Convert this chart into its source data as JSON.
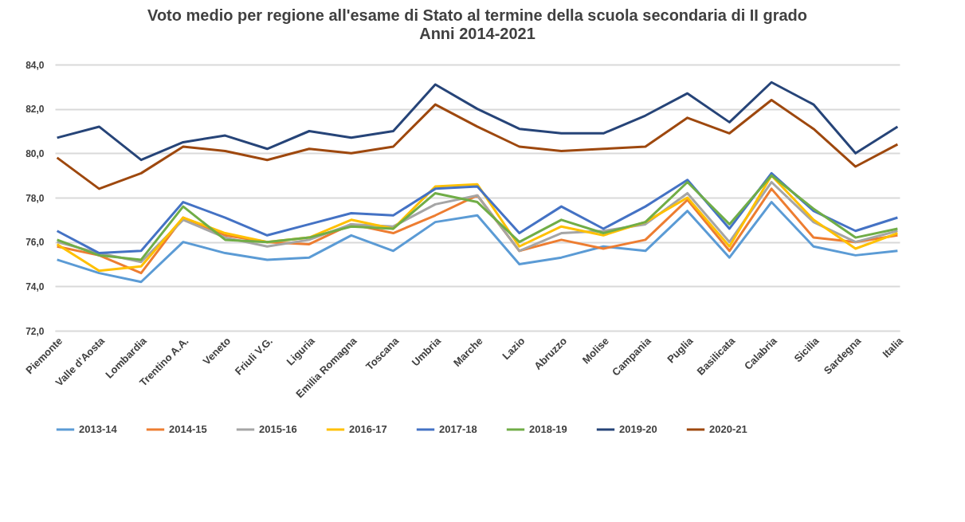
{
  "chart_data": {
    "type": "line",
    "title": "Voto medio per regione all'esame di Stato al termine della scuola secondaria di II grado",
    "subtitle": "Anni 2014-2021",
    "categories": [
      "Piemonte",
      "Valle d'Aosta",
      "Lombardia",
      "Trentino A.A.",
      "Veneto",
      "Friuli V.G.",
      "Liguria",
      "Emilia Romagna",
      "Toscana",
      "Umbria",
      "Marche",
      "Lazio",
      "Abruzzo",
      "Molise",
      "Campania",
      "Puglia",
      "Basilicata",
      "Calabria",
      "Sicilia",
      "Sardegna",
      "Italia"
    ],
    "ylim": [
      72,
      84
    ],
    "yticks": [
      {
        "value": 72,
        "label": "72,0"
      },
      {
        "value": 74,
        "label": "74,0"
      },
      {
        "value": 76,
        "label": "76,0"
      },
      {
        "value": 78,
        "label": "78,0"
      },
      {
        "value": 80,
        "label": "80,0"
      },
      {
        "value": 82,
        "label": "82,0"
      },
      {
        "value": 84,
        "label": "84,0"
      }
    ],
    "grid": "y",
    "legend": "bottom",
    "line_style": "solid",
    "series": [
      {
        "name": "2013-14",
        "color": "#5b9bd5",
        "values": [
          75.2,
          74.6,
          74.2,
          76.0,
          75.5,
          75.2,
          75.3,
          76.3,
          75.6,
          76.9,
          77.2,
          75.0,
          75.3,
          75.8,
          75.6,
          77.4,
          75.3,
          77.8,
          75.8,
          75.4,
          75.6
        ]
      },
      {
        "name": "2014-15",
        "color": "#ed7d31",
        "values": [
          75.8,
          75.4,
          74.6,
          77.1,
          76.3,
          76.0,
          75.9,
          76.8,
          76.4,
          77.2,
          78.1,
          75.6,
          76.1,
          75.7,
          76.1,
          77.9,
          75.6,
          78.4,
          76.2,
          76.0,
          76.3
        ]
      },
      {
        "name": "2015-16",
        "color": "#a5a5a5",
        "values": [
          76.0,
          75.5,
          75.1,
          77.0,
          76.2,
          75.8,
          76.1,
          76.8,
          76.7,
          77.7,
          78.1,
          75.6,
          76.4,
          76.5,
          76.8,
          78.2,
          76.0,
          78.7,
          76.9,
          76.0,
          76.5
        ]
      },
      {
        "name": "2016-17",
        "color": "#ffc000",
        "values": [
          75.9,
          74.7,
          74.9,
          77.1,
          76.4,
          76.0,
          76.2,
          77.0,
          76.6,
          78.5,
          78.6,
          75.8,
          76.7,
          76.3,
          76.9,
          78.0,
          75.8,
          79.0,
          77.0,
          75.7,
          76.4
        ]
      },
      {
        "name": "2017-18",
        "color": "#4472c4",
        "values": [
          76.5,
          75.5,
          75.6,
          77.8,
          77.1,
          76.3,
          76.8,
          77.3,
          77.2,
          78.4,
          78.5,
          76.4,
          77.6,
          76.6,
          77.6,
          78.8,
          76.6,
          79.1,
          77.4,
          76.5,
          77.1
        ]
      },
      {
        "name": "2018-19",
        "color": "#70ad47",
        "values": [
          76.1,
          75.4,
          75.2,
          77.6,
          76.1,
          76.0,
          76.2,
          76.7,
          76.6,
          78.2,
          77.8,
          76.0,
          77.0,
          76.4,
          76.9,
          78.7,
          76.8,
          79.0,
          77.5,
          76.2,
          76.6
        ]
      },
      {
        "name": "2019-20",
        "color": "#264478",
        "values": [
          80.7,
          81.2,
          79.7,
          80.5,
          80.8,
          80.2,
          81.0,
          80.7,
          81.0,
          83.1,
          82.0,
          81.1,
          80.9,
          80.9,
          81.7,
          82.7,
          81.4,
          83.2,
          82.2,
          80.0,
          81.2
        ]
      },
      {
        "name": "2020-21",
        "color": "#9e480e",
        "values": [
          79.8,
          78.4,
          79.1,
          80.3,
          80.1,
          79.7,
          80.2,
          80.0,
          80.3,
          82.2,
          81.2,
          80.3,
          80.1,
          80.2,
          80.3,
          81.6,
          80.9,
          82.4,
          81.1,
          79.4,
          80.4
        ]
      }
    ]
  }
}
